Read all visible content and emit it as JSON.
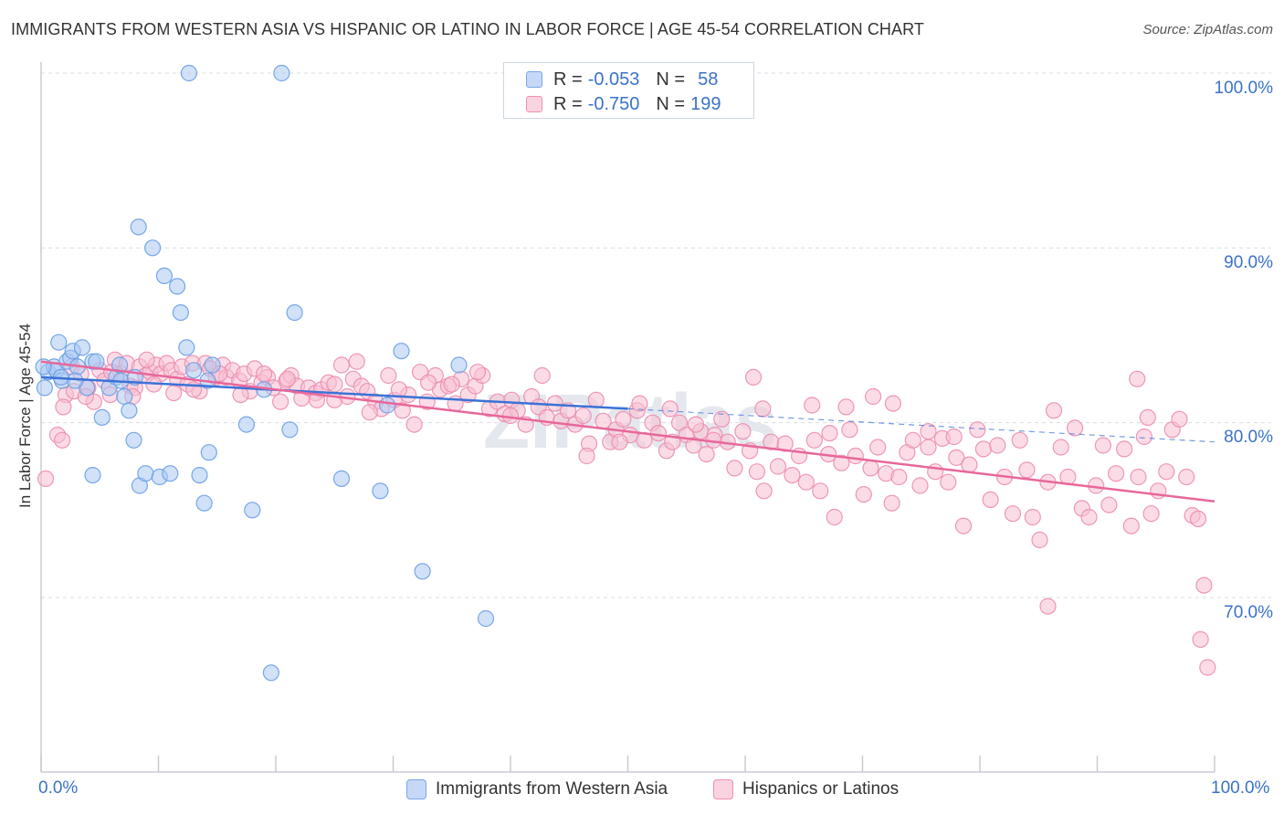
{
  "title": "IMMIGRANTS FROM WESTERN ASIA VS HISPANIC OR LATINO IN LABOR FORCE | AGE 45-54 CORRELATION CHART",
  "source": "Source: ZipAtlas.com",
  "watermark": "ZIPatlas",
  "legend": {
    "rows": [
      {
        "r_label": "R = ",
        "r_value": "-0.053",
        "n_label": "N = ",
        "n_value": "58",
        "color": "#7aa6e8"
      },
      {
        "r_label": "R = ",
        "r_value": "-0.750",
        "n_label": "N = ",
        "n_value": "199",
        "color": "#f08fb0"
      }
    ]
  },
  "colors": {
    "blue_fill": "#aac8f2",
    "blue_stroke": "#6a9ee6",
    "blue_line": "#3b72d6",
    "pink_fill": "#f7bfd2",
    "pink_stroke": "#ec8cb0",
    "pink_line": "#e8679a",
    "tick_text": "#3b72c8",
    "grid": "#d8dde6"
  },
  "chart_data": {
    "type": "scatter",
    "title": "IMMIGRANTS FROM WESTERN ASIA VS HISPANIC OR LATINO IN LABOR FORCE | AGE 45-54 CORRELATION CHART",
    "xlabel": "",
    "ylabel": "In Labor Force | Age 45-54",
    "xlim": [
      0,
      100
    ],
    "ylim": [
      61.5,
      101
    ],
    "x_tick_labels": [
      "0.0%",
      "100.0%"
    ],
    "y_ticks": [
      70,
      80,
      90,
      100
    ],
    "y_tick_labels": [
      "70.0%",
      "80.0%",
      "90.0%",
      "100.0%"
    ],
    "grid": true,
    "legend_position": "top-center",
    "series": [
      {
        "name": "Immigrants from Western Asia",
        "R": -0.053,
        "N": 58,
        "trend": {
          "x0": 0,
          "y0": 82.6,
          "x1": 50,
          "y1": 80.8,
          "dashed_to_x": 100,
          "dashed_to_y": 78.9
        },
        "points": [
          [
            0.3,
            82.0
          ],
          [
            0.6,
            82.9
          ],
          [
            1.1,
            83.2
          ],
          [
            1.3,
            83.0
          ],
          [
            1.5,
            84.6
          ],
          [
            1.8,
            82.4
          ],
          [
            2.2,
            83.5
          ],
          [
            2.5,
            83.7
          ],
          [
            2.7,
            84.1
          ],
          [
            3.1,
            83.2
          ],
          [
            3.5,
            84.3
          ],
          [
            3.9,
            82.0
          ],
          [
            4.4,
            83.5
          ],
          [
            4.7,
            83.5
          ],
          [
            5.2,
            80.3
          ],
          [
            5.8,
            82.0
          ],
          [
            6.4,
            82.6
          ],
          [
            6.8,
            82.4
          ],
          [
            7.1,
            81.5
          ],
          [
            7.5,
            80.7
          ],
          [
            7.9,
            79.0
          ],
          [
            8.3,
            91.2
          ],
          [
            8.4,
            76.4
          ],
          [
            8.9,
            77.1
          ],
          [
            9.5,
            90.0
          ],
          [
            10.1,
            76.9
          ],
          [
            10.5,
            88.4
          ],
          [
            11.0,
            77.1
          ],
          [
            11.6,
            87.8
          ],
          [
            11.9,
            86.3
          ],
          [
            12.4,
            84.3
          ],
          [
            13.0,
            83.0
          ],
          [
            13.5,
            77.0
          ],
          [
            13.9,
            75.4
          ],
          [
            14.3,
            78.3
          ],
          [
            14.6,
            83.3
          ],
          [
            12.6,
            100.0
          ],
          [
            20.5,
            100.0
          ],
          [
            17.5,
            79.9
          ],
          [
            18.0,
            75.0
          ],
          [
            19.0,
            81.9
          ],
          [
            19.6,
            65.7
          ],
          [
            21.2,
            79.6
          ],
          [
            21.6,
            86.3
          ],
          [
            25.6,
            76.8
          ],
          [
            28.9,
            76.1
          ],
          [
            29.5,
            81.0
          ],
          [
            30.7,
            84.1
          ],
          [
            32.5,
            71.5
          ],
          [
            35.6,
            83.3
          ],
          [
            37.9,
            68.8
          ],
          [
            4.4,
            77.0
          ],
          [
            6.7,
            83.3
          ],
          [
            2.9,
            82.4
          ],
          [
            1.7,
            82.6
          ],
          [
            0.2,
            83.2
          ],
          [
            8.0,
            82.6
          ],
          [
            14.2,
            82.4
          ]
        ]
      },
      {
        "name": "Hispanics or Latinos",
        "R": -0.75,
        "N": 199,
        "trend": {
          "x0": 0,
          "y0": 83.5,
          "x1": 100,
          "y1": 75.5
        },
        "points": [
          [
            0.4,
            76.8
          ],
          [
            1.4,
            79.3
          ],
          [
            1.8,
            79.0
          ],
          [
            2.1,
            81.6
          ],
          [
            2.6,
            83.2
          ],
          [
            2.8,
            81.8
          ],
          [
            3.4,
            82.8
          ],
          [
            4.0,
            82.0
          ],
          [
            4.5,
            81.2
          ],
          [
            5.0,
            83.0
          ],
          [
            5.4,
            82.4
          ],
          [
            5.9,
            81.6
          ],
          [
            6.3,
            83.6
          ],
          [
            6.8,
            82.8
          ],
          [
            7.3,
            83.4
          ],
          [
            7.6,
            82.1
          ],
          [
            8.0,
            82.0
          ],
          [
            8.4,
            83.2
          ],
          [
            8.9,
            82.7
          ],
          [
            9.3,
            82.9
          ],
          [
            9.8,
            83.3
          ],
          [
            10.2,
            82.8
          ],
          [
            10.7,
            83.4
          ],
          [
            11.1,
            83.0
          ],
          [
            11.6,
            82.5
          ],
          [
            12.0,
            83.2
          ],
          [
            12.5,
            82.2
          ],
          [
            12.9,
            83.4
          ],
          [
            13.5,
            81.8
          ],
          [
            14.0,
            83.4
          ],
          [
            14.4,
            83.1
          ],
          [
            14.9,
            82.6
          ],
          [
            15.5,
            83.3
          ],
          [
            15.8,
            82.6
          ],
          [
            16.3,
            83.0
          ],
          [
            16.9,
            82.4
          ],
          [
            17.3,
            82.8
          ],
          [
            17.8,
            81.8
          ],
          [
            18.2,
            83.1
          ],
          [
            18.8,
            82.3
          ],
          [
            19.3,
            82.6
          ],
          [
            19.8,
            82.0
          ],
          [
            20.4,
            81.2
          ],
          [
            20.9,
            82.4
          ],
          [
            21.3,
            82.7
          ],
          [
            21.8,
            82.1
          ],
          [
            22.2,
            81.4
          ],
          [
            22.8,
            82.0
          ],
          [
            23.4,
            81.7
          ],
          [
            23.9,
            81.9
          ],
          [
            24.5,
            82.3
          ],
          [
            25.0,
            81.3
          ],
          [
            25.6,
            83.3
          ],
          [
            26.1,
            81.5
          ],
          [
            26.6,
            82.5
          ],
          [
            27.3,
            82.1
          ],
          [
            27.8,
            81.8
          ],
          [
            28.5,
            81.2
          ],
          [
            29.0,
            80.8
          ],
          [
            29.6,
            82.7
          ],
          [
            30.1,
            81.3
          ],
          [
            30.8,
            80.7
          ],
          [
            31.3,
            81.6
          ],
          [
            31.8,
            79.9
          ],
          [
            32.3,
            82.9
          ],
          [
            32.9,
            81.2
          ],
          [
            33.6,
            82.7
          ],
          [
            34.0,
            81.9
          ],
          [
            34.7,
            82.1
          ],
          [
            35.3,
            81.1
          ],
          [
            35.8,
            82.5
          ],
          [
            36.4,
            81.6
          ],
          [
            37.0,
            82.1
          ],
          [
            37.6,
            82.7
          ],
          [
            38.2,
            80.8
          ],
          [
            38.9,
            81.2
          ],
          [
            39.5,
            80.5
          ],
          [
            40.1,
            81.3
          ],
          [
            40.6,
            80.7
          ],
          [
            41.3,
            79.9
          ],
          [
            41.8,
            81.5
          ],
          [
            42.4,
            80.9
          ],
          [
            43.1,
            80.3
          ],
          [
            43.8,
            81.1
          ],
          [
            44.3,
            80.1
          ],
          [
            44.9,
            80.7
          ],
          [
            45.5,
            79.9
          ],
          [
            46.2,
            80.4
          ],
          [
            46.7,
            78.8
          ],
          [
            47.3,
            81.3
          ],
          [
            47.9,
            80.1
          ],
          [
            48.5,
            78.9
          ],
          [
            49.0,
            79.6
          ],
          [
            49.6,
            80.2
          ],
          [
            50.2,
            79.3
          ],
          [
            50.8,
            80.7
          ],
          [
            51.4,
            79.0
          ],
          [
            52.1,
            80.0
          ],
          [
            52.6,
            79.4
          ],
          [
            53.3,
            78.4
          ],
          [
            53.8,
            78.9
          ],
          [
            54.4,
            80.0
          ],
          [
            55.0,
            79.3
          ],
          [
            55.6,
            78.7
          ],
          [
            56.2,
            79.5
          ],
          [
            56.7,
            78.2
          ],
          [
            57.4,
            79.3
          ],
          [
            58.0,
            80.2
          ],
          [
            58.5,
            78.9
          ],
          [
            59.1,
            77.4
          ],
          [
            59.8,
            79.5
          ],
          [
            60.4,
            78.4
          ],
          [
            61.0,
            77.2
          ],
          [
            61.6,
            76.1
          ],
          [
            62.2,
            78.9
          ],
          [
            62.8,
            77.5
          ],
          [
            63.4,
            78.8
          ],
          [
            64.0,
            77.0
          ],
          [
            64.6,
            78.1
          ],
          [
            65.2,
            76.6
          ],
          [
            65.9,
            79.0
          ],
          [
            66.4,
            76.1
          ],
          [
            67.1,
            78.2
          ],
          [
            67.6,
            74.6
          ],
          [
            68.2,
            77.7
          ],
          [
            68.9,
            79.6
          ],
          [
            69.4,
            78.1
          ],
          [
            70.1,
            75.9
          ],
          [
            70.7,
            77.4
          ],
          [
            71.3,
            78.6
          ],
          [
            72.0,
            77.1
          ],
          [
            72.5,
            75.4
          ],
          [
            73.1,
            76.9
          ],
          [
            73.8,
            78.3
          ],
          [
            74.3,
            79.0
          ],
          [
            74.9,
            76.4
          ],
          [
            75.6,
            78.6
          ],
          [
            76.2,
            77.2
          ],
          [
            76.8,
            79.1
          ],
          [
            77.3,
            76.6
          ],
          [
            78.0,
            78.0
          ],
          [
            78.6,
            74.1
          ],
          [
            79.1,
            77.6
          ],
          [
            79.8,
            79.6
          ],
          [
            80.3,
            78.5
          ],
          [
            80.9,
            75.6
          ],
          [
            81.5,
            78.7
          ],
          [
            82.1,
            76.9
          ],
          [
            82.8,
            74.8
          ],
          [
            83.4,
            79.0
          ],
          [
            84.0,
            77.3
          ],
          [
            84.5,
            74.6
          ],
          [
            85.1,
            73.3
          ],
          [
            85.8,
            76.6
          ],
          [
            86.3,
            80.7
          ],
          [
            86.9,
            78.6
          ],
          [
            87.5,
            76.9
          ],
          [
            88.1,
            79.7
          ],
          [
            88.7,
            75.1
          ],
          [
            89.3,
            74.6
          ],
          [
            89.9,
            76.4
          ],
          [
            90.5,
            78.7
          ],
          [
            91.0,
            75.3
          ],
          [
            91.6,
            77.1
          ],
          [
            92.3,
            78.5
          ],
          [
            92.9,
            74.1
          ],
          [
            93.5,
            76.9
          ],
          [
            94.0,
            79.2
          ],
          [
            94.6,
            74.8
          ],
          [
            95.2,
            76.1
          ],
          [
            95.9,
            77.2
          ],
          [
            96.4,
            79.6
          ],
          [
            97.0,
            80.2
          ],
          [
            97.6,
            76.9
          ],
          [
            98.1,
            74.7
          ],
          [
            98.6,
            74.5
          ],
          [
            99.1,
            70.7
          ],
          [
            98.8,
            67.6
          ],
          [
            99.4,
            66.0
          ],
          [
            85.8,
            69.5
          ],
          [
            60.7,
            82.6
          ],
          [
            61.5,
            80.8
          ],
          [
            65.7,
            81.0
          ],
          [
            67.2,
            79.4
          ],
          [
            68.6,
            80.9
          ],
          [
            70.9,
            81.5
          ],
          [
            72.6,
            81.1
          ],
          [
            75.6,
            79.5
          ],
          [
            77.8,
            79.2
          ],
          [
            93.4,
            82.5
          ],
          [
            94.3,
            80.3
          ],
          [
            53.6,
            80.8
          ],
          [
            55.8,
            79.9
          ],
          [
            57.3,
            79.0
          ],
          [
            51.0,
            81.1
          ],
          [
            46.5,
            78.1
          ],
          [
            42.7,
            82.7
          ],
          [
            40.0,
            80.4
          ],
          [
            37.2,
            82.9
          ],
          [
            35.0,
            82.2
          ],
          [
            33.0,
            82.3
          ],
          [
            30.5,
            81.9
          ],
          [
            28.0,
            80.6
          ],
          [
            26.9,
            83.5
          ],
          [
            25.0,
            82.2
          ],
          [
            23.5,
            81.3
          ],
          [
            21.0,
            82.5
          ],
          [
            19.0,
            82.8
          ],
          [
            17.0,
            81.6
          ],
          [
            15.2,
            82.8
          ],
          [
            13.0,
            81.9
          ],
          [
            11.3,
            81.7
          ],
          [
            9.6,
            82.2
          ],
          [
            7.8,
            81.5
          ],
          [
            6.0,
            82.9
          ],
          [
            3.8,
            81.5
          ],
          [
            1.9,
            80.9
          ],
          [
            9.0,
            83.6
          ],
          [
            49.3,
            78.9
          ]
        ]
      }
    ]
  }
}
